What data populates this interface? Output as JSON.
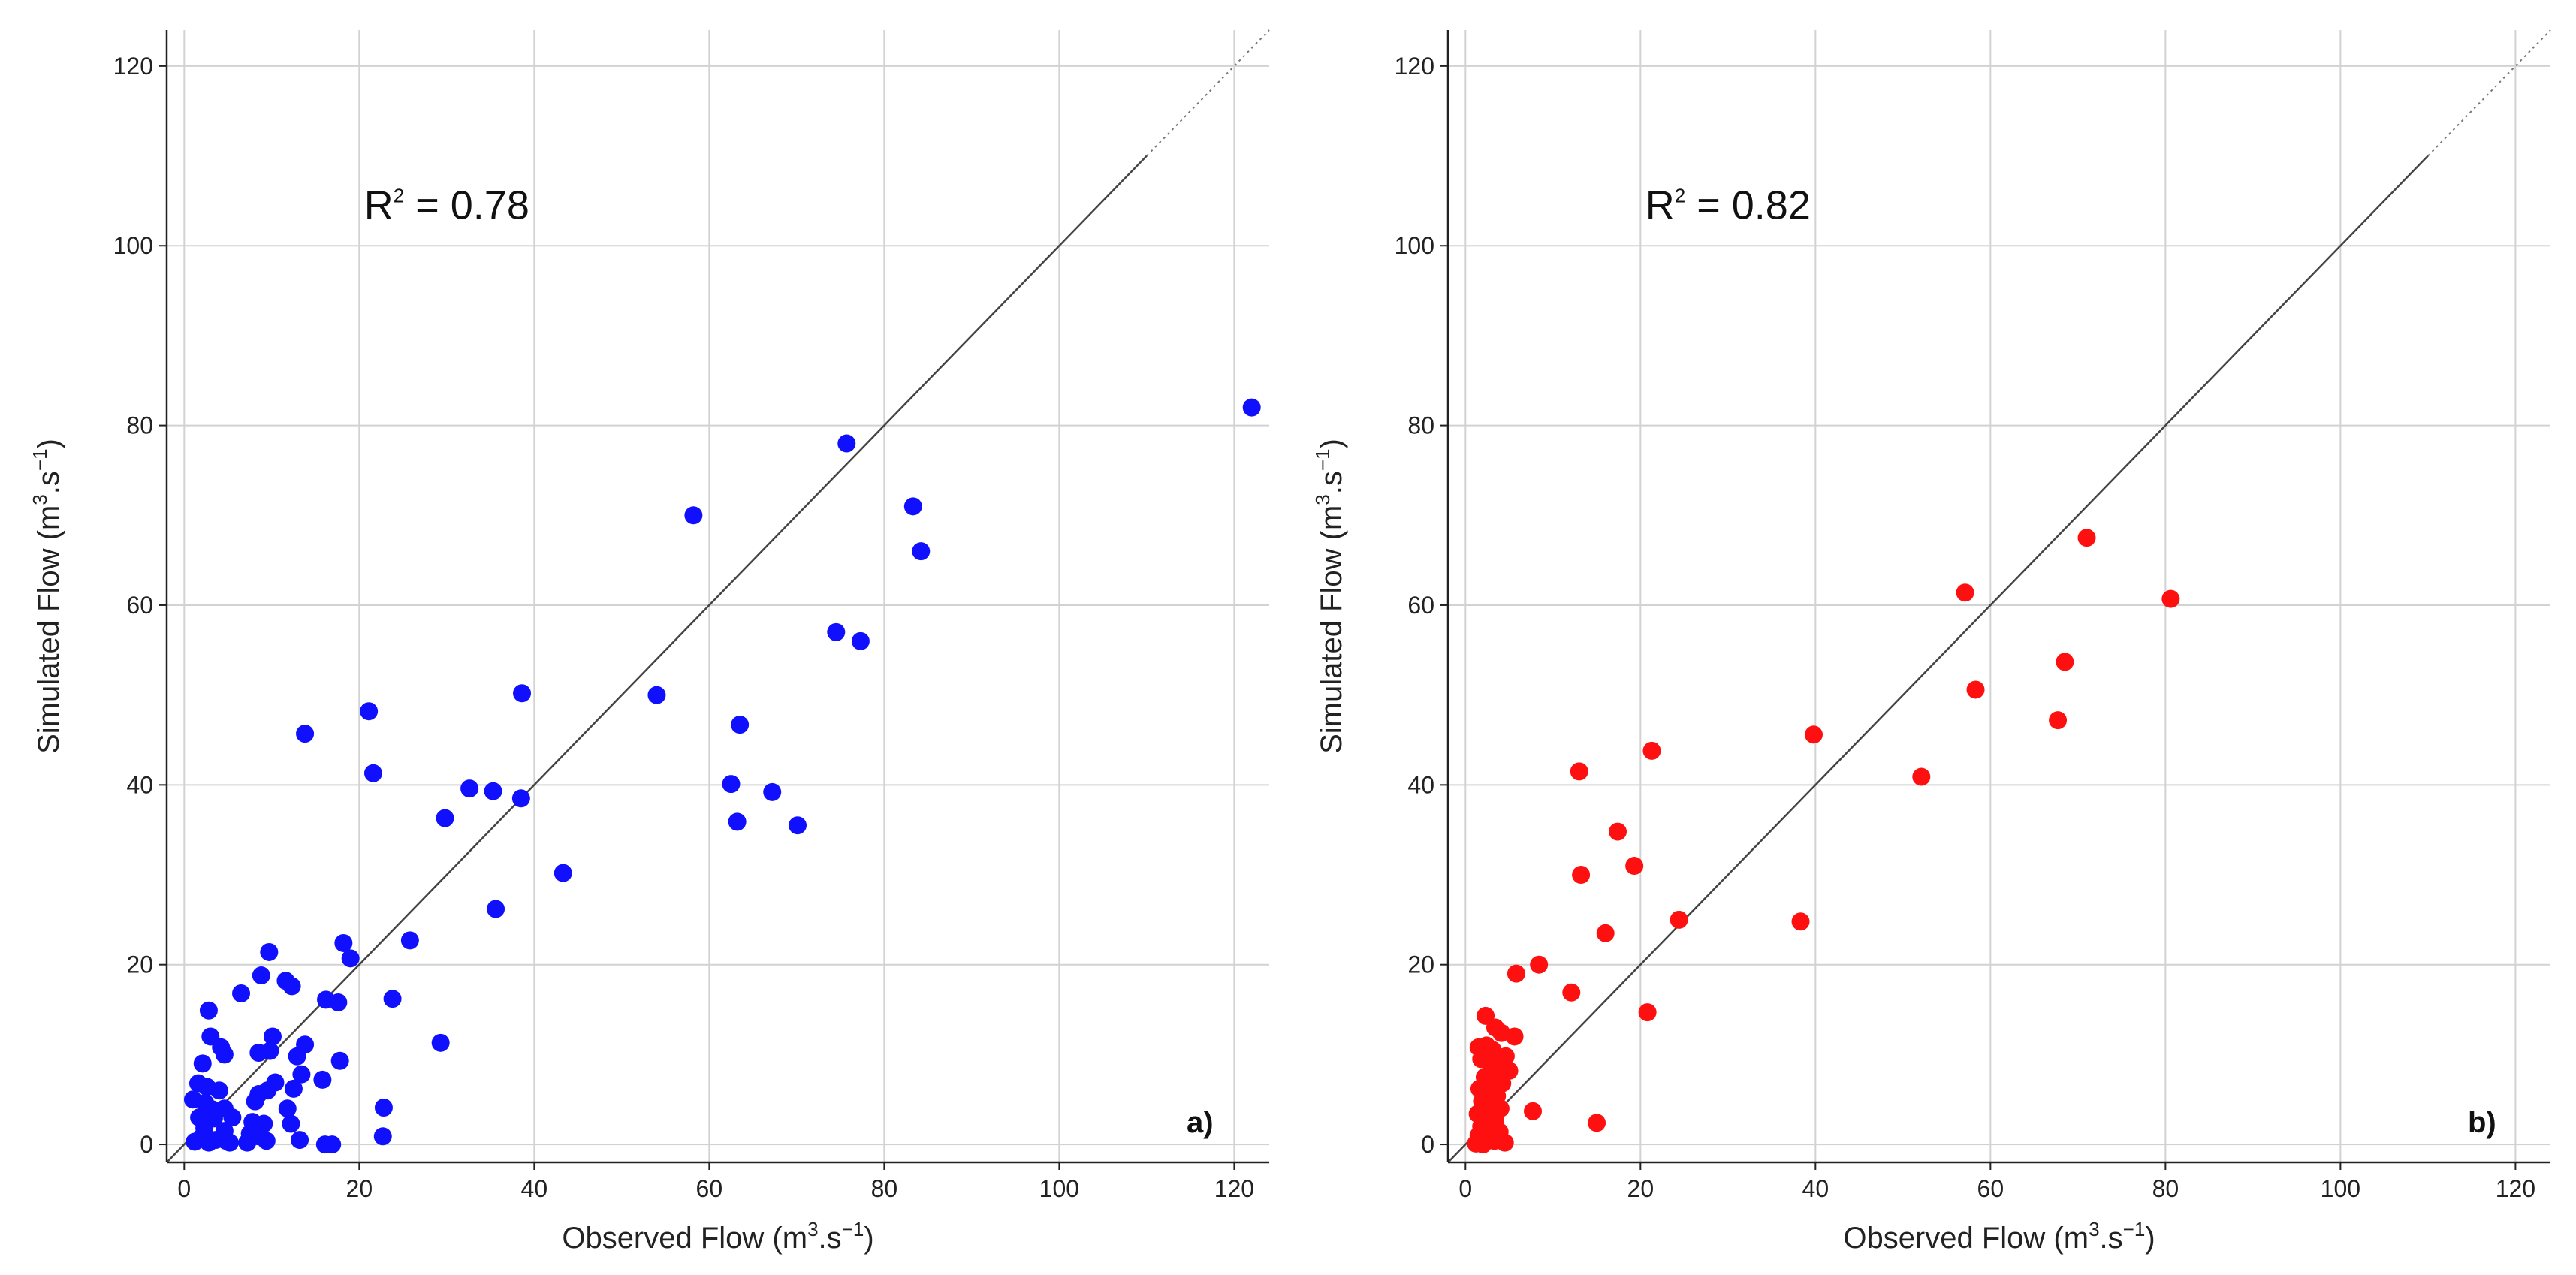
{
  "chart_data": [
    {
      "type": "scatter",
      "panel_label": "a)",
      "annotation": {
        "prefix": "R",
        "sup": "2",
        "suffix": " = 0.78"
      },
      "xlabel": {
        "pre": "Observed Flow (m",
        "sup1": "3",
        "mid": ".s",
        "sup2": "−1",
        "post": ")"
      },
      "ylabel": {
        "pre": "Simulated Flow (m",
        "sup1": "3",
        "mid": ".s",
        "sup2": "−1",
        "post": ")"
      },
      "xlim": [
        -2,
        124
      ],
      "ylim": [
        -2,
        124
      ],
      "ticks": [
        0,
        20,
        40,
        60,
        80,
        100,
        120
      ],
      "tick_labels": [
        "0",
        "20",
        "40",
        "60",
        "80",
        "100",
        "120"
      ],
      "grid": true,
      "one_to_one_line": true,
      "point_color": "#1010ff",
      "points": [
        [
          122,
          82
        ],
        [
          75.7,
          78
        ],
        [
          83.3,
          71
        ],
        [
          84.2,
          66
        ],
        [
          58.2,
          70
        ],
        [
          74.5,
          57
        ],
        [
          77.3,
          56
        ],
        [
          38.6,
          50.2
        ],
        [
          54,
          50
        ],
        [
          21.1,
          48.2
        ],
        [
          63.5,
          46.7
        ],
        [
          13.8,
          45.7
        ],
        [
          21.6,
          41.3
        ],
        [
          62.5,
          40.1
        ],
        [
          32.6,
          39.6
        ],
        [
          35.3,
          39.3
        ],
        [
          67.2,
          39.2
        ],
        [
          38.5,
          38.5
        ],
        [
          29.8,
          36.3
        ],
        [
          63.2,
          35.9
        ],
        [
          70.1,
          35.5
        ],
        [
          43.3,
          30.2
        ],
        [
          35.6,
          26.2
        ],
        [
          18.2,
          22.4
        ],
        [
          25.8,
          22.7
        ],
        [
          9.7,
          21.4
        ],
        [
          19,
          20.7
        ],
        [
          8.8,
          18.8
        ],
        [
          11.6,
          18.2
        ],
        [
          12.3,
          17.6
        ],
        [
          6.5,
          16.8
        ],
        [
          23.8,
          16.2
        ],
        [
          16.2,
          16.1
        ],
        [
          17.6,
          15.8
        ],
        [
          2.8,
          14.9
        ],
        [
          3,
          12
        ],
        [
          10.1,
          12
        ],
        [
          4.2,
          10.8
        ],
        [
          4.6,
          10
        ],
        [
          8.5,
          10.2
        ],
        [
          9.8,
          10.4
        ],
        [
          13.8,
          11.1
        ],
        [
          12.9,
          9.8
        ],
        [
          17.8,
          9.3
        ],
        [
          2.1,
          9
        ],
        [
          29.3,
          11.3
        ],
        [
          13.4,
          7.8
        ],
        [
          15.8,
          7.2
        ],
        [
          1.6,
          6.8
        ],
        [
          2.6,
          6.4
        ],
        [
          4,
          6
        ],
        [
          9.5,
          6
        ],
        [
          10.4,
          6.9
        ],
        [
          12.5,
          6.2
        ],
        [
          8.5,
          5.6
        ],
        [
          1,
          5
        ],
        [
          2.4,
          4.6
        ],
        [
          22.8,
          4.1
        ],
        [
          3.2,
          3.9
        ],
        [
          4.6,
          4
        ],
        [
          8.1,
          4.8
        ],
        [
          11.8,
          4
        ],
        [
          1.7,
          3
        ],
        [
          3.4,
          2.9
        ],
        [
          5.5,
          3
        ],
        [
          7.8,
          2.5
        ],
        [
          12.2,
          2.3
        ],
        [
          2.3,
          1.8
        ],
        [
          4.6,
          1.5
        ],
        [
          7.5,
          1.2
        ],
        [
          9.1,
          2.3
        ],
        [
          2,
          0.8
        ],
        [
          4.8,
          0.4
        ],
        [
          8.5,
          0.9
        ],
        [
          13.2,
          0.5
        ],
        [
          22.7,
          0.9
        ],
        [
          1.2,
          0.3
        ],
        [
          2.8,
          0.2
        ],
        [
          3.6,
          0.5
        ],
        [
          5.2,
          0.2
        ],
        [
          7.2,
          0.2
        ],
        [
          9.4,
          0.4
        ],
        [
          16.1,
          0
        ],
        [
          16.9,
          0
        ]
      ]
    },
    {
      "type": "scatter",
      "panel_label": "b)",
      "annotation": {
        "prefix": "R",
        "sup": "2",
        "suffix": " = 0.82"
      },
      "xlabel": {
        "pre": "Observed Flow (m",
        "sup1": "3",
        "mid": ".s",
        "sup2": "−1",
        "post": ")"
      },
      "ylabel": {
        "pre": "Simulated Flow (m",
        "sup1": "3",
        "mid": ".s",
        "sup2": "−1",
        "post": ")"
      },
      "xlim": [
        -2,
        124
      ],
      "ylim": [
        -2,
        124
      ],
      "ticks": [
        0,
        20,
        40,
        60,
        80,
        100,
        120
      ],
      "tick_labels": [
        "0",
        "20",
        "40",
        "60",
        "80",
        "100",
        "120"
      ],
      "grid": true,
      "one_to_one_line": true,
      "point_color": "#ff1010",
      "points": [
        [
          71,
          67.5
        ],
        [
          57.1,
          61.4
        ],
        [
          80.6,
          60.7
        ],
        [
          68.5,
          53.7
        ],
        [
          58.3,
          50.6
        ],
        [
          67.7,
          47.2
        ],
        [
          39.8,
          45.6
        ],
        [
          21.3,
          43.8
        ],
        [
          13,
          41.5
        ],
        [
          52.1,
          40.9
        ],
        [
          17.4,
          34.8
        ],
        [
          19.3,
          31
        ],
        [
          13.2,
          30
        ],
        [
          24.4,
          25
        ],
        [
          38.3,
          24.8
        ],
        [
          16,
          23.5
        ],
        [
          8.4,
          20
        ],
        [
          5.8,
          19
        ],
        [
          12.1,
          16.9
        ],
        [
          20.8,
          14.7
        ],
        [
          2.3,
          14.3
        ],
        [
          3.4,
          13
        ],
        [
          4.1,
          12.4
        ],
        [
          5.6,
          12
        ],
        [
          1.5,
          10.8
        ],
        [
          2.4,
          11
        ],
        [
          3.1,
          10.5
        ],
        [
          4.6,
          9.8
        ],
        [
          1.8,
          9.5
        ],
        [
          2.8,
          9
        ],
        [
          3.8,
          8.5
        ],
        [
          5,
          8.2
        ],
        [
          2.2,
          7.5
        ],
        [
          3.2,
          7
        ],
        [
          4.2,
          6.8
        ],
        [
          1.6,
          6.2
        ],
        [
          2.7,
          5.8
        ],
        [
          3.6,
          5.4
        ],
        [
          1.9,
          4.8
        ],
        [
          3,
          4.3
        ],
        [
          4,
          4
        ],
        [
          7.7,
          3.7
        ],
        [
          1.4,
          3.4
        ],
        [
          2.5,
          3
        ],
        [
          3.4,
          2.7
        ],
        [
          15,
          2.4
        ],
        [
          1.8,
          2
        ],
        [
          2.8,
          1.7
        ],
        [
          3.9,
          1.4
        ],
        [
          1.5,
          1
        ],
        [
          2.4,
          0.6
        ],
        [
          3.3,
          0.4
        ],
        [
          4.5,
          0.2
        ],
        [
          1.2,
          0.1
        ],
        [
          2,
          0
        ]
      ]
    }
  ]
}
